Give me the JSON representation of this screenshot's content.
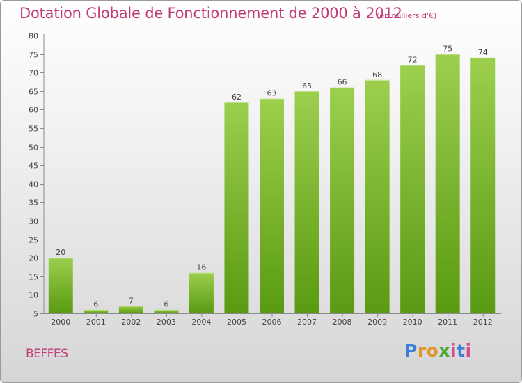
{
  "header": {
    "title": "Dotation Globale de Fonctionnement de 2000 à 2012",
    "unit_note": "(en milliers d'€)"
  },
  "footer": {
    "commune": "BEFFES",
    "logo_text": "Proxiti"
  },
  "colors": {
    "accent": "#c23b78",
    "bar_top": "#9ccf4e",
    "bar_bottom": "#5a9a12"
  },
  "chart_data": {
    "type": "bar",
    "title": "Dotation Globale de Fonctionnement de 2000 à 2012",
    "subtitle": "(en milliers d'€)",
    "categories": [
      "2000",
      "2001",
      "2002",
      "2003",
      "2004",
      "2005",
      "2006",
      "2007",
      "2008",
      "2009",
      "2010",
      "2011",
      "2012"
    ],
    "values": [
      20,
      6,
      7,
      6,
      16,
      62,
      63,
      65,
      66,
      68,
      72,
      75,
      74
    ],
    "ylim": [
      5,
      80
    ],
    "yticks": [
      5,
      10,
      15,
      20,
      25,
      30,
      35,
      40,
      45,
      50,
      55,
      60,
      65,
      70,
      75,
      80
    ],
    "grid": false,
    "xlabel": "",
    "ylabel": ""
  }
}
